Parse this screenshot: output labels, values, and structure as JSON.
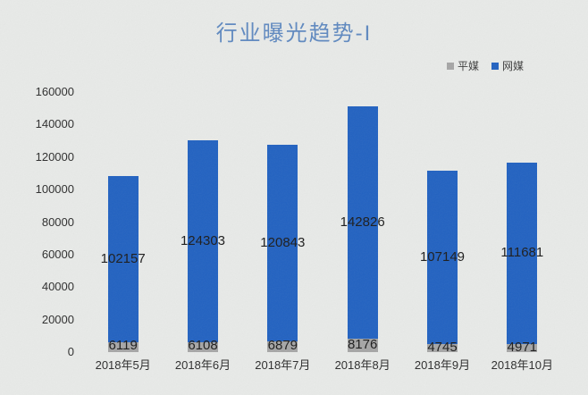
{
  "page": {
    "title": "行业曝光趋势-I"
  },
  "legend": {
    "print": {
      "label": "平媒"
    },
    "online": {
      "label": "网媒"
    }
  },
  "colors": {
    "background": "#e8eae8",
    "title": "#5f89c0",
    "online_media_blue": "#2262c1",
    "print_media_gray": "#a6a6a6",
    "value_label": "#1c1c1c",
    "axis_label": "#2e2e2e",
    "legend_text": "#3d3d3d"
  },
  "chart_data": {
    "type": "bar",
    "stacked": true,
    "title": "行业曝光趋势-I",
    "categories": [
      "2018年5月",
      "2018年6月",
      "2018年7月",
      "2018年8月",
      "2018年9月",
      "2018年10月"
    ],
    "series": [
      {
        "name": "平媒",
        "color_key": "print_media_gray",
        "values": [
          6119,
          6108,
          6879,
          8176,
          4745,
          4971
        ]
      },
      {
        "name": "网媒",
        "color_key": "online_media_blue",
        "values": [
          102157,
          124303,
          120843,
          142826,
          107149,
          111681
        ]
      }
    ],
    "xlabel": "",
    "ylabel": "",
    "ylim": [
      0,
      160000
    ],
    "yticks": [
      0,
      20000,
      40000,
      60000,
      80000,
      100000,
      120000,
      140000,
      160000
    ],
    "grid": false,
    "legend_position": "top-right",
    "value_labels": "centered-on-segment"
  }
}
